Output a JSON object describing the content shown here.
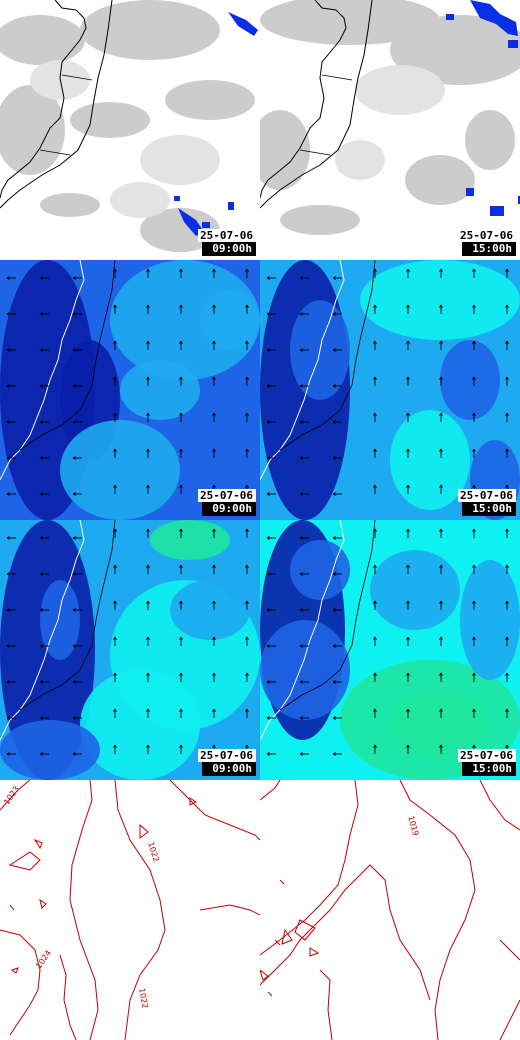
{
  "rows": [
    {
      "id": "clouds",
      "panels": [
        {
          "date": "25-07-06",
          "time": "09:00h"
        },
        {
          "date": "25-07-06",
          "time": "15:00h"
        }
      ]
    },
    {
      "id": "wind-a",
      "panels": [
        {
          "date": "25-07-06",
          "time": "09:00h"
        },
        {
          "date": "25-07-06",
          "time": "15:00h"
        }
      ]
    },
    {
      "id": "wind-b",
      "panels": [
        {
          "date": "25-07-06",
          "time": "09:00h"
        },
        {
          "date": "25-07-06",
          "time": "15:00h"
        }
      ]
    },
    {
      "id": "pressure",
      "panels": [
        {
          "isobar_labels": [
            "1023",
            "1022",
            "1024",
            "1022"
          ]
        },
        {
          "isobar_labels": [
            "1019"
          ]
        }
      ]
    }
  ],
  "colors": {
    "cloud_gray": "#bdbdbd",
    "precip_blue": "#0a2ee6",
    "deep_blue": "#0a1fa8",
    "mid_blue": "#1e64e6",
    "light_blue": "#1eaaf0",
    "cyan": "#0ff0f0",
    "aqua_green": "#1ee6a0",
    "isobar_red": "#c00000"
  }
}
